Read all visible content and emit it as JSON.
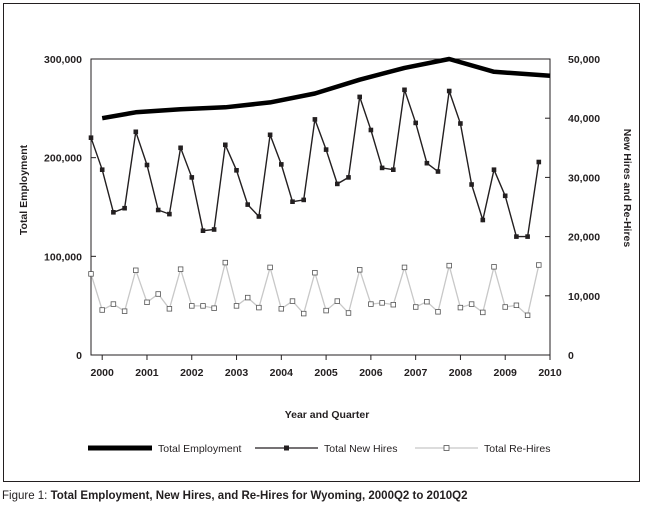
{
  "chart_data": {
    "type": "line",
    "xlabel": "Year and Quarter",
    "ylabel_left": "Total Employment",
    "ylabel_right": "New Hires and Re-Hires",
    "x_tick_labels": [
      "2000",
      "2001",
      "2002",
      "2003",
      "2004",
      "2005",
      "2006",
      "2007",
      "2008",
      "2009",
      "2010"
    ],
    "y_left_ticks": [
      "0",
      "100,000",
      "200,000",
      "300,000"
    ],
    "y_right_ticks": [
      "0",
      "10,000",
      "20,000",
      "30,000",
      "40,000",
      "50,000"
    ],
    "ylim_left": [
      0,
      300000
    ],
    "ylim_right": [
      0,
      50000
    ],
    "series": [
      {
        "name": "Total Employment",
        "axis": "left",
        "x": [
          2000.25,
          2001,
          2002,
          2003,
          2004,
          2005,
          2006,
          2007,
          2008,
          2009,
          2010.25
        ],
        "values": [
          240000,
          246000,
          249000,
          251000,
          256000,
          265000,
          279000,
          291000,
          300000,
          287000,
          283000
        ]
      },
      {
        "name": "Total New Hires",
        "axis": "right",
        "x_start": 2000.0,
        "x_step": 0.25,
        "values": [
          36700,
          31300,
          24100,
          24800,
          37700,
          32100,
          24500,
          23800,
          35000,
          30000,
          21000,
          21200,
          35500,
          31200,
          25400,
          23400,
          37200,
          32200,
          25900,
          26200,
          39800,
          34700,
          28900,
          30000,
          43600,
          38000,
          31600,
          31300,
          44800,
          39200,
          32400,
          31000,
          44600,
          39100,
          28800,
          22800,
          31300,
          26900,
          20000,
          20000,
          32600
        ]
      },
      {
        "name": "Total Re-Hires",
        "axis": "right",
        "x_start": 2000.0,
        "x_step": 0.25,
        "values": [
          13700,
          7600,
          8600,
          7400,
          14300,
          8900,
          10300,
          7800,
          14500,
          8300,
          8300,
          7900,
          15600,
          8300,
          9700,
          8000,
          14800,
          7800,
          9100,
          7000,
          13900,
          7500,
          9100,
          7100,
          14400,
          8600,
          8800,
          8500,
          14800,
          8100,
          9000,
          7300,
          15100,
          8000,
          8600,
          7200,
          14900,
          8100,
          8400,
          6700,
          15200
        ]
      }
    ],
    "colors": {
      "total_employment": "#000000",
      "new_hires": "#231f20",
      "rehires_line": "#c8c8c8",
      "rehires_marker": "#555555"
    },
    "legend_position": "bottom",
    "grid": false
  },
  "caption": {
    "lead": "Figure 1:",
    "body": "Total Employment, New Hires, and Re-Hires for Wyoming, 2000Q2 to 2010Q2"
  }
}
